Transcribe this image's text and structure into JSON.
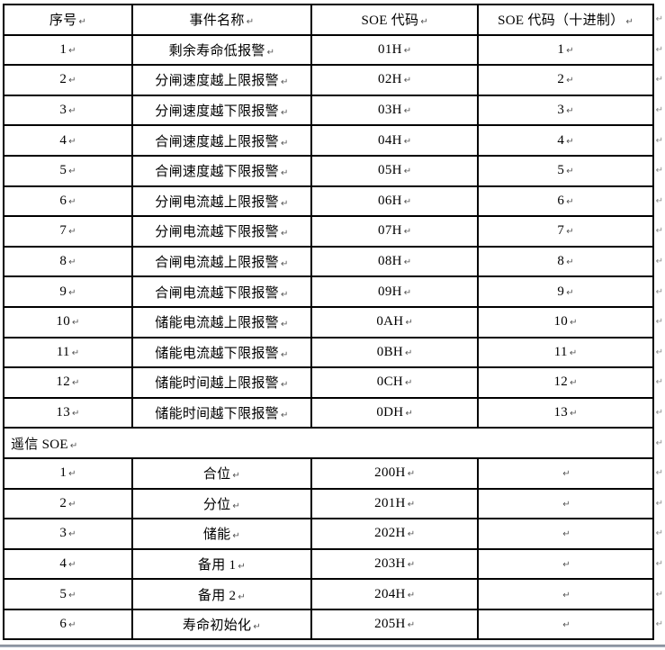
{
  "table": {
    "headers": [
      "序号",
      "事件名称",
      "SOE 代码",
      "SOE 代码（十进制）"
    ],
    "section1": [
      {
        "no": "1",
        "name": "剩余寿命低报警",
        "code": "01H",
        "dec": "1"
      },
      {
        "no": "2",
        "name": "分闸速度越上限报警",
        "code": "02H",
        "dec": "2"
      },
      {
        "no": "3",
        "name": "分闸速度越下限报警",
        "code": "03H",
        "dec": "3"
      },
      {
        "no": "4",
        "name": "合闸速度越上限报警",
        "code": "04H",
        "dec": "4"
      },
      {
        "no": "5",
        "name": "合闸速度越下限报警",
        "code": "05H",
        "dec": "5"
      },
      {
        "no": "6",
        "name": "分闸电流越上限报警",
        "code": "06H",
        "dec": "6"
      },
      {
        "no": "7",
        "name": "分闸电流越下限报警",
        "code": "07H",
        "dec": "7"
      },
      {
        "no": "8",
        "name": "合闸电流越上限报警",
        "code": "08H",
        "dec": "8"
      },
      {
        "no": "9",
        "name": "合闸电流越下限报警",
        "code": "09H",
        "dec": "9"
      },
      {
        "no": "10",
        "name": "储能电流越上限报警",
        "code": "0AH",
        "dec": "10"
      },
      {
        "no": "11",
        "name": "储能电流越下限报警",
        "code": "0BH",
        "dec": "11"
      },
      {
        "no": "12",
        "name": "储能时间越上限报警",
        "code": "0CH",
        "dec": "12"
      },
      {
        "no": "13",
        "name": "储能时间越下限报警",
        "code": "0DH",
        "dec": "13"
      }
    ],
    "divider": "遥信 SOE",
    "section2": [
      {
        "no": "1",
        "name": "合位",
        "code": "200H",
        "dec": ""
      },
      {
        "no": "2",
        "name": "分位",
        "code": "201H",
        "dec": ""
      },
      {
        "no": "3",
        "name": "储能",
        "code": "202H",
        "dec": ""
      },
      {
        "no": "4",
        "name": "备用 1",
        "code": "203H",
        "dec": ""
      },
      {
        "no": "5",
        "name": "备用 2",
        "code": "204H",
        "dec": ""
      },
      {
        "no": "6",
        "name": "寿命初始化",
        "code": "205H",
        "dec": ""
      }
    ],
    "marks": {
      "pilcrow": "↵",
      "row_end": "↵"
    },
    "colors": {
      "border": "#000000",
      "text": "#000000",
      "bottom_edge": "#9aa3b0"
    }
  }
}
